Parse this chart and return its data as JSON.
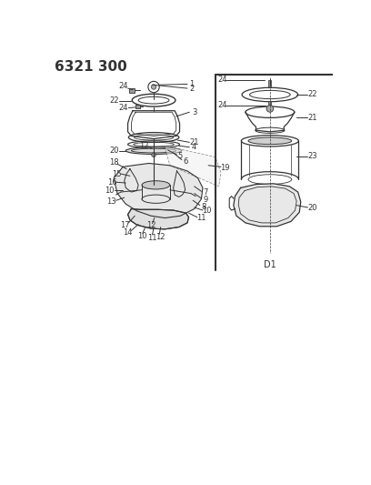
{
  "title": "6321 300",
  "background_color": "#ffffff",
  "fig_width": 4.08,
  "fig_height": 5.33,
  "dpi": 100,
  "line_color": "#333333",
  "label_fontsize": 6.0,
  "title_fontsize": 11
}
